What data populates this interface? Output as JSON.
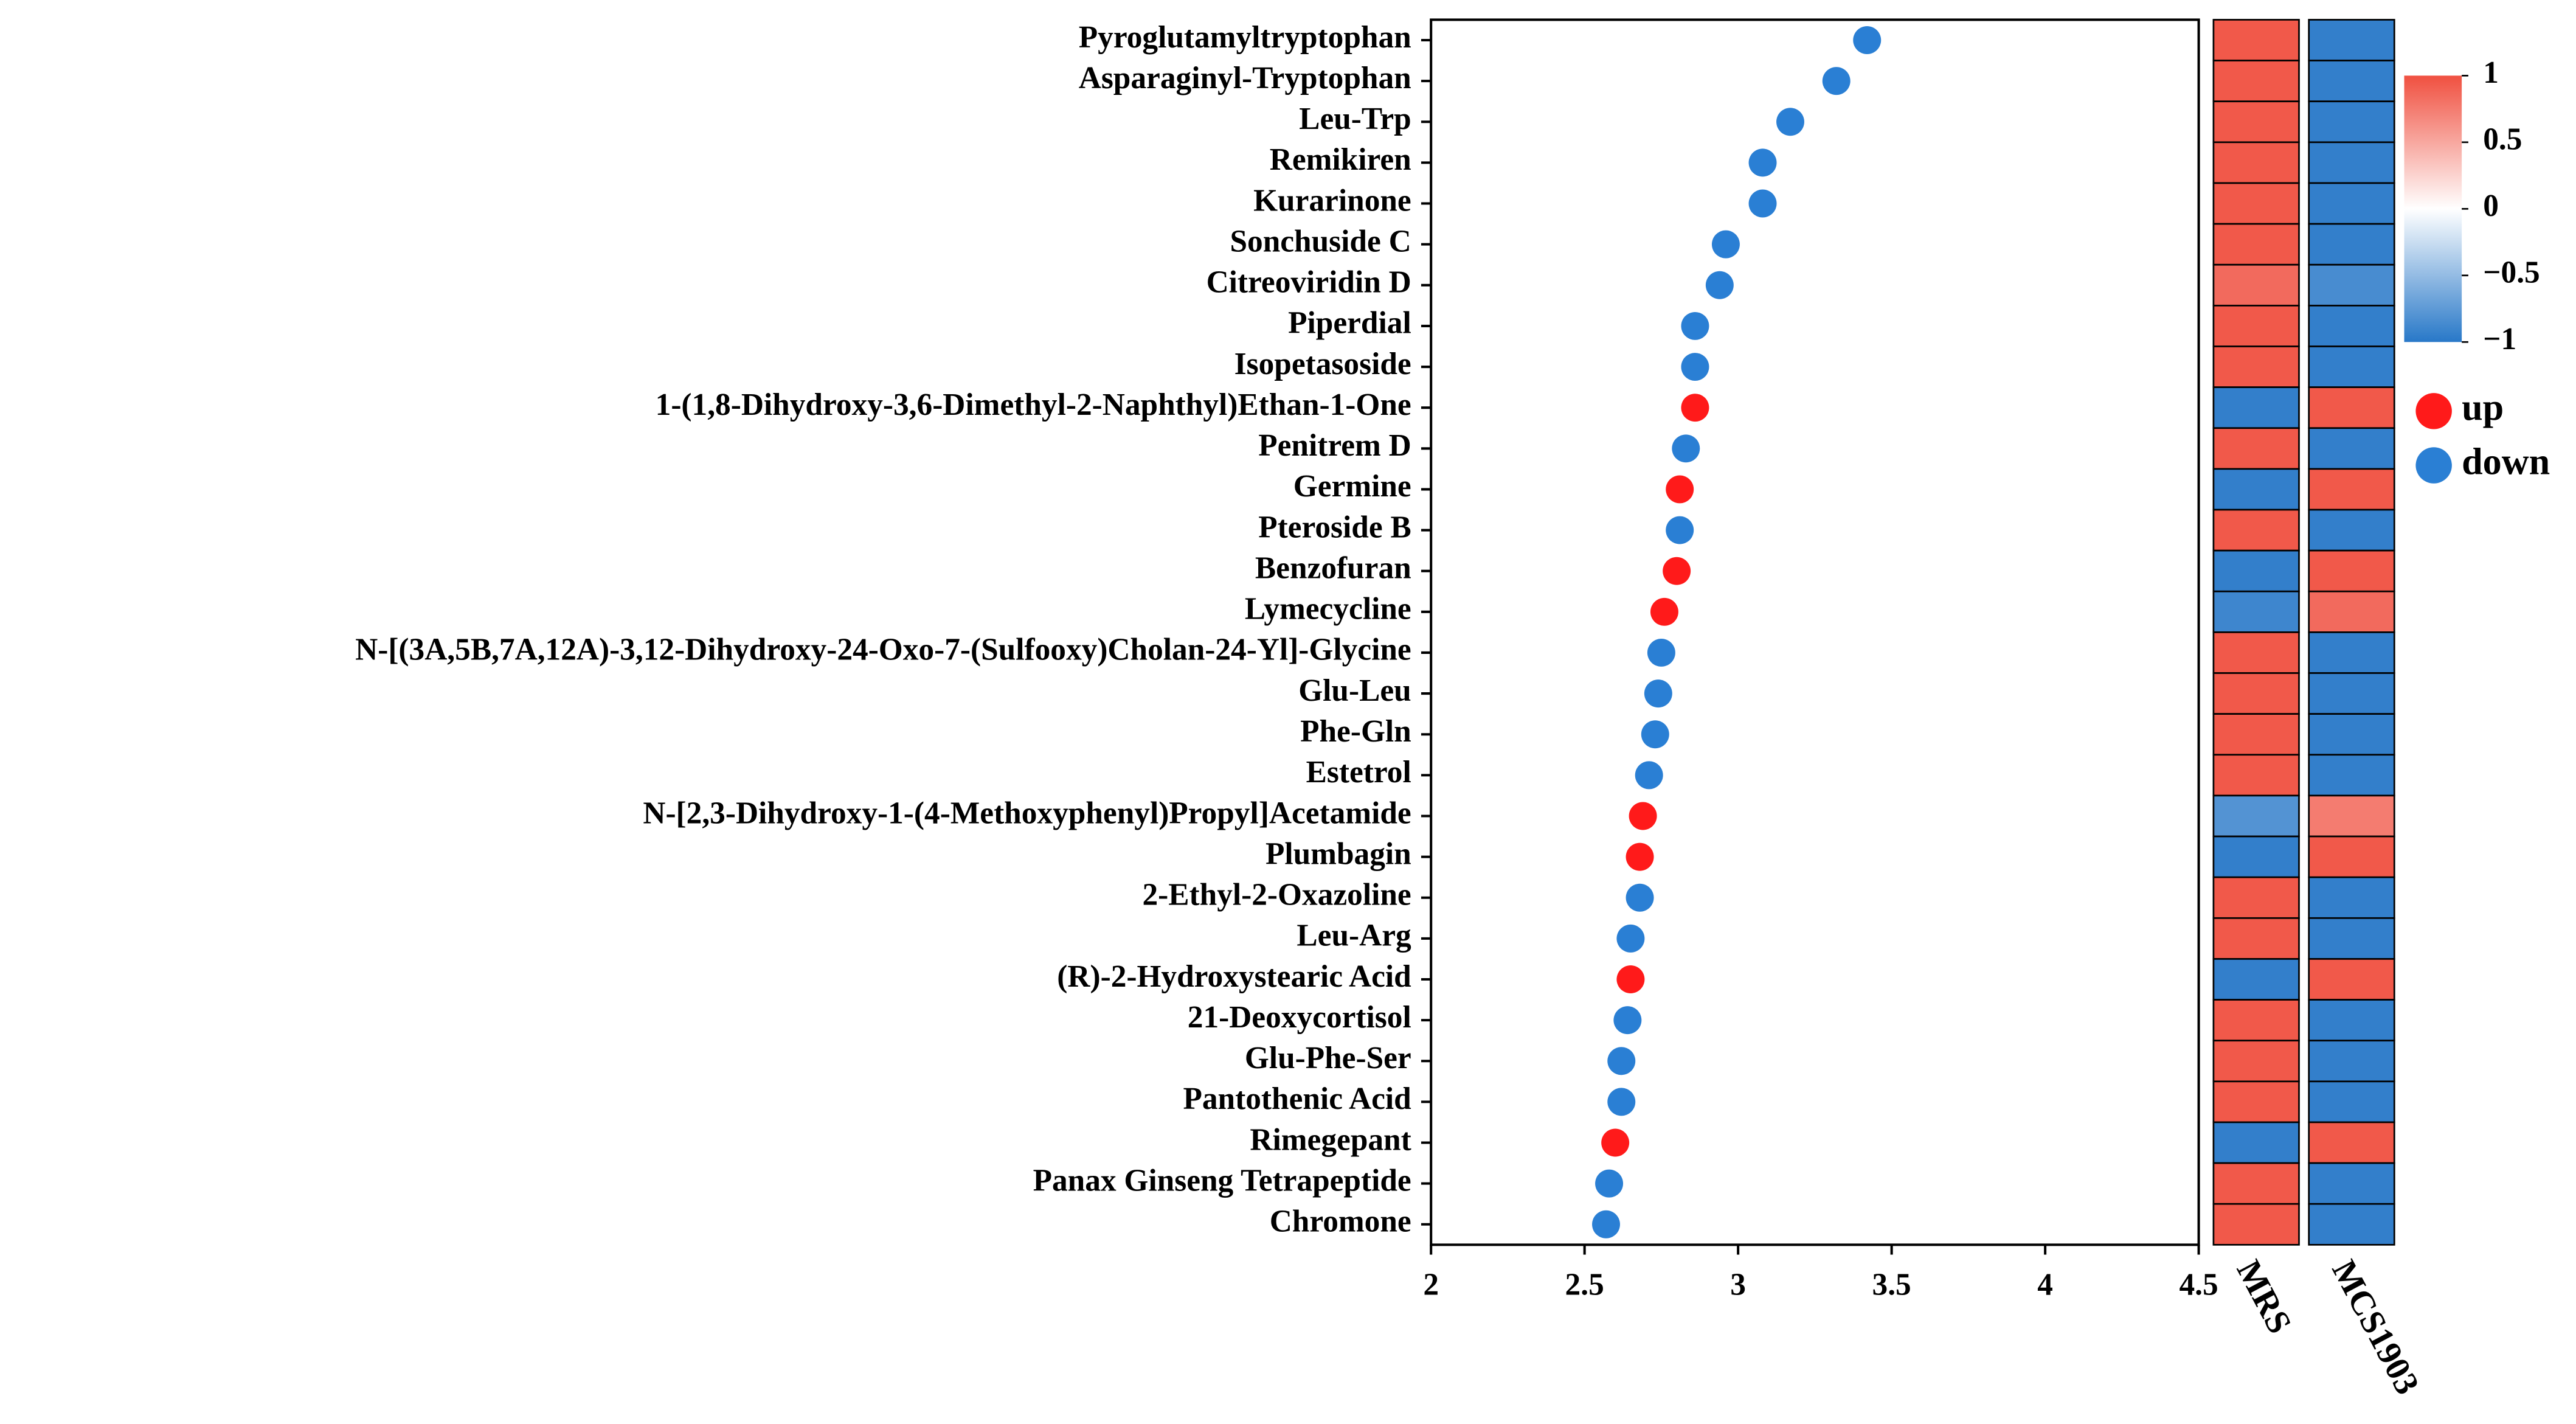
{
  "chart_data": {
    "type": "dot",
    "categories": [
      "Pyroglutamyltryptophan",
      "Asparaginyl-Tryptophan",
      "Leu-Trp",
      "Remikiren",
      "Kurarinone",
      "Sonchuside C",
      "Citreoviridin D",
      "Piperdial",
      "Isopetasoside",
      "1-(1,8-Dihydroxy-3,6-Dimethyl-2-Naphthyl)Ethan-1-One",
      "Penitrem D",
      "Germine",
      "Pteroside B",
      "Benzofuran",
      "Lymecycline",
      "N-[(3A,5B,7A,12A)-3,12-Dihydroxy-24-Oxo-7-(Sulfooxy)Cholan-24-Yl]-Glycine",
      "Glu-Leu",
      "Phe-Gln",
      "Estetrol",
      "N-[2,3-Dihydroxy-1-(4-Methoxyphenyl)Propyl]Acetamide",
      "Plumbagin",
      "2-Ethyl-2-Oxazoline",
      "Leu-Arg",
      "(R)-2-Hydroxystearic Acid",
      "21-Deoxycortisol",
      "Glu-Phe-Ser",
      "Pantothenic Acid",
      "Rimegepant",
      "Panax Ginseng Tetrapeptide",
      "Chromone"
    ],
    "series": [
      {
        "name": "up",
        "color": "#ff1a1a",
        "values": [
          null,
          null,
          null,
          null,
          null,
          null,
          null,
          null,
          null,
          2.86,
          null,
          2.81,
          null,
          2.8,
          2.76,
          null,
          null,
          null,
          null,
          2.69,
          2.68,
          null,
          null,
          2.65,
          null,
          null,
          null,
          2.6,
          null,
          null
        ]
      },
      {
        "name": "down",
        "color": "#2a7fd4",
        "values": [
          3.42,
          3.32,
          3.17,
          3.08,
          3.08,
          2.96,
          2.94,
          2.86,
          2.86,
          null,
          2.83,
          null,
          2.81,
          null,
          null,
          2.75,
          2.74,
          2.73,
          2.71,
          null,
          null,
          2.68,
          2.65,
          null,
          2.64,
          2.62,
          2.62,
          null,
          2.58,
          2.57
        ]
      }
    ],
    "xlim": [
      2,
      4.5
    ],
    "xticks": [
      2,
      2.5,
      3,
      3.5,
      4,
      4.5
    ],
    "heatmap": {
      "columns": [
        "MRS",
        "MCS1903"
      ],
      "values": [
        [
          0.95,
          -0.95
        ],
        [
          0.95,
          -0.95
        ],
        [
          0.95,
          -0.95
        ],
        [
          0.95,
          -0.95
        ],
        [
          0.95,
          -0.95
        ],
        [
          0.95,
          -0.95
        ],
        [
          0.85,
          -0.85
        ],
        [
          0.95,
          -0.95
        ],
        [
          0.95,
          -0.95
        ],
        [
          -0.95,
          0.95
        ],
        [
          0.95,
          -0.95
        ],
        [
          -0.95,
          0.95
        ],
        [
          0.95,
          -0.95
        ],
        [
          -0.95,
          0.95
        ],
        [
          -0.9,
          0.85
        ],
        [
          0.95,
          -0.95
        ],
        [
          0.95,
          -0.95
        ],
        [
          0.95,
          -0.95
        ],
        [
          0.95,
          -0.95
        ],
        [
          -0.8,
          0.75
        ],
        [
          -0.95,
          0.95
        ],
        [
          0.95,
          -0.95
        ],
        [
          0.95,
          -0.95
        ],
        [
          -0.95,
          0.95
        ],
        [
          0.95,
          -0.95
        ],
        [
          0.95,
          -0.95
        ],
        [
          0.95,
          -0.95
        ],
        [
          -0.95,
          0.95
        ],
        [
          0.95,
          -0.95
        ],
        [
          0.95,
          -0.95
        ]
      ],
      "clim": [
        -1,
        1
      ],
      "cticks": [
        1,
        0.5,
        0,
        {
          "value": -0.5,
          "label": "−0.5"
        },
        {
          "value": -1,
          "label": "−1"
        }
      ]
    }
  }
}
